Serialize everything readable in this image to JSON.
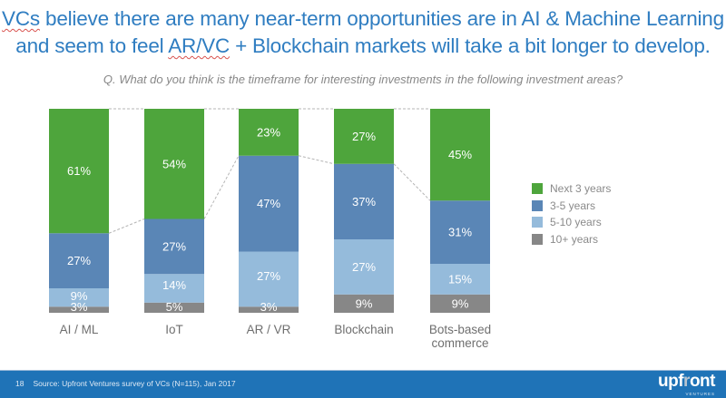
{
  "headline": {
    "line1_word1": "VCs",
    "line1_rest": " believe there are many near-term opportunities are in AI & Machine Learning",
    "line2_pre": "and seem to feel ",
    "line2_word": "AR/VC",
    "line2_rest": " + Blockchain markets will take a bit longer to develop."
  },
  "question": "Q. What do you think is the timeframe for interesting investments in the following investment areas?",
  "chart_data": {
    "type": "bar",
    "stacked": true,
    "normalized": true,
    "title": "Q. What do you think is the timeframe for interesting investments in the following investment areas?",
    "xlabel": "",
    "ylabel": "",
    "ylim": [
      0,
      100
    ],
    "grid": false,
    "legend_position": "right",
    "categories": [
      "AI / ML",
      "IoT",
      "AR / VR",
      "Blockchain",
      "Bots-based commerce"
    ],
    "series": [
      {
        "name": "10+ years",
        "color": "#878787",
        "values": [
          3,
          5,
          3,
          9,
          9
        ],
        "labels": [
          "3%",
          "5%",
          "3%",
          "9%",
          "9%"
        ]
      },
      {
        "name": "5-10 years",
        "color": "#95bbdb",
        "values": [
          9,
          14,
          27,
          27,
          15
        ],
        "labels": [
          "9%",
          "14%",
          "27%",
          "27%",
          "15%"
        ]
      },
      {
        "name": "3-5 years",
        "color": "#5a86b6",
        "values": [
          27,
          27,
          47,
          37,
          31
        ],
        "labels": [
          "27%",
          "27%",
          "47%",
          "37%",
          "31%"
        ]
      },
      {
        "name": "Next 3 years",
        "color": "#4ea53c",
        "values": [
          61,
          54,
          23,
          27,
          45
        ],
        "labels": [
          "61%",
          "54%",
          "23%",
          "27%",
          "45%"
        ]
      }
    ],
    "legend": [
      "Next 3 years",
      "3-5 years",
      "5-10 years",
      "10+ years"
    ]
  },
  "footer": {
    "page_number": "18",
    "source": "Source: Upfront Ventures survey of VCs (N=115), Jan 2017",
    "logo_word_a": "upf",
    "logo_word_t": "r",
    "logo_word_b": "ont",
    "logo_sub": "VENTURES"
  }
}
